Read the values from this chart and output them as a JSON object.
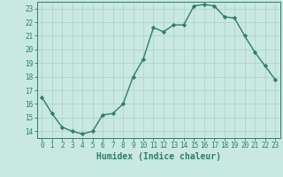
{
  "x": [
    0,
    1,
    2,
    3,
    4,
    5,
    6,
    7,
    8,
    9,
    10,
    11,
    12,
    13,
    14,
    15,
    16,
    17,
    18,
    19,
    20,
    21,
    22,
    23
  ],
  "y": [
    16.5,
    15.3,
    14.3,
    14.0,
    13.8,
    14.0,
    15.2,
    15.3,
    16.0,
    18.0,
    19.3,
    21.6,
    21.3,
    21.8,
    21.8,
    23.2,
    23.3,
    23.2,
    22.4,
    22.3,
    21.0,
    19.8,
    18.8,
    17.8
  ],
  "line_color": "#2e7d6e",
  "marker": "D",
  "markersize": 2.2,
  "linewidth": 1.0,
  "bg_color": "#c8e8e0",
  "grid_color": "#aed0c8",
  "axis_color": "#2e7d6e",
  "xlabel": "Humidex (Indice chaleur)",
  "xlim": [
    -0.5,
    23.5
  ],
  "ylim": [
    13.5,
    23.5
  ],
  "yticks": [
    14,
    15,
    16,
    17,
    18,
    19,
    20,
    21,
    22,
    23
  ],
  "xticks": [
    0,
    1,
    2,
    3,
    4,
    5,
    6,
    7,
    8,
    9,
    10,
    11,
    12,
    13,
    14,
    15,
    16,
    17,
    18,
    19,
    20,
    21,
    22,
    23
  ],
  "tick_fontsize": 5.5,
  "xlabel_fontsize": 7.0
}
